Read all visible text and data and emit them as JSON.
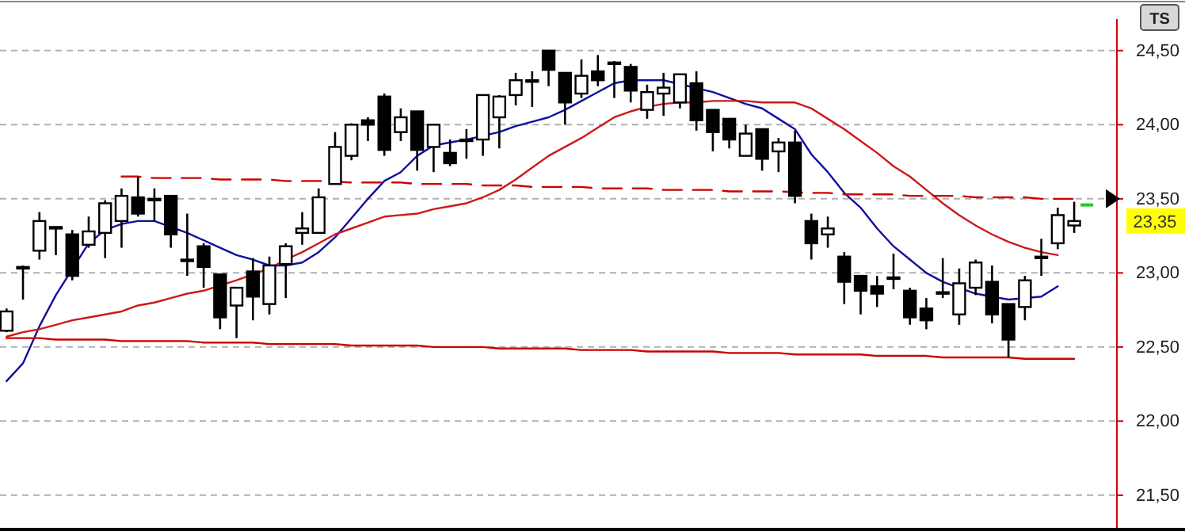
{
  "chart_data": {
    "type": "candlestick",
    "categories": [
      null,
      null,
      null,
      null,
      null,
      null,
      null,
      null,
      null,
      null,
      null,
      null,
      null,
      null,
      null,
      null,
      null,
      null,
      null,
      null,
      null,
      null,
      null,
      null,
      null,
      null,
      null,
      null,
      null,
      null,
      null,
      null,
      null,
      null,
      null,
      null,
      null,
      null,
      null,
      null,
      null,
      null,
      null,
      null,
      null,
      null,
      null,
      null,
      null,
      null,
      null,
      null,
      null,
      null,
      null,
      null,
      null,
      null,
      null,
      null,
      null,
      null,
      null,
      null,
      null,
      null
    ],
    "ohlc": [
      [
        22.61,
        22.76,
        22.6,
        22.74
      ],
      [
        23.03,
        23.05,
        22.82,
        23.04
      ],
      [
        23.15,
        23.41,
        23.09,
        23.35
      ],
      [
        23.3,
        23.31,
        23.12,
        23.31
      ],
      [
        23.26,
        23.29,
        22.95,
        22.98
      ],
      [
        23.19,
        23.38,
        23.17,
        23.28
      ],
      [
        23.27,
        23.49,
        23.1,
        23.47
      ],
      [
        23.35,
        23.57,
        23.17,
        23.52
      ],
      [
        23.51,
        23.65,
        23.38,
        23.4
      ],
      [
        23.5,
        23.57,
        23.35,
        23.5
      ],
      [
        23.52,
        23.52,
        23.17,
        23.26
      ],
      [
        23.09,
        23.4,
        22.98,
        23.09
      ],
      [
        23.18,
        23.2,
        22.9,
        23.04
      ],
      [
        22.99,
        22.99,
        22.62,
        22.7
      ],
      [
        22.78,
        22.9,
        22.56,
        22.9
      ],
      [
        23.01,
        23.1,
        22.68,
        22.84
      ],
      [
        22.79,
        23.11,
        22.72,
        23.05
      ],
      [
        23.06,
        23.2,
        22.83,
        23.18
      ],
      [
        23.27,
        23.41,
        23.19,
        23.3
      ],
      [
        23.27,
        23.57,
        23.27,
        23.51
      ],
      [
        23.6,
        23.95,
        23.6,
        23.85
      ],
      [
        23.79,
        24.01,
        23.76,
        24.0
      ],
      [
        24.03,
        24.05,
        23.89,
        24.0
      ],
      [
        24.19,
        24.21,
        23.79,
        23.83
      ],
      [
        23.95,
        24.11,
        23.89,
        24.05
      ],
      [
        24.09,
        24.09,
        23.69,
        23.83
      ],
      [
        23.85,
        24.0,
        23.68,
        24.0
      ],
      [
        23.81,
        23.9,
        23.72,
        23.74
      ],
      [
        23.89,
        23.97,
        23.77,
        23.9
      ],
      [
        23.9,
        24.2,
        23.79,
        24.2
      ],
      [
        24.05,
        24.2,
        23.84,
        24.19
      ],
      [
        24.2,
        24.35,
        24.13,
        24.3
      ],
      [
        24.29,
        24.36,
        24.12,
        24.3
      ],
      [
        24.5,
        24.5,
        24.26,
        24.37
      ],
      [
        24.35,
        24.35,
        24.0,
        24.15
      ],
      [
        24.21,
        24.44,
        24.18,
        24.33
      ],
      [
        24.36,
        24.47,
        24.26,
        24.3
      ],
      [
        24.41,
        24.43,
        24.18,
        24.42
      ],
      [
        24.39,
        24.41,
        24.15,
        24.23
      ],
      [
        24.1,
        24.27,
        24.04,
        24.22
      ],
      [
        24.21,
        24.35,
        24.06,
        24.25
      ],
      [
        24.15,
        24.34,
        24.11,
        24.34
      ],
      [
        24.28,
        24.36,
        23.96,
        24.03
      ],
      [
        24.1,
        24.1,
        23.82,
        23.95
      ],
      [
        24.04,
        24.04,
        23.84,
        23.9
      ],
      [
        23.79,
        24.0,
        23.79,
        23.94
      ],
      [
        23.97,
        23.97,
        23.69,
        23.77
      ],
      [
        23.82,
        23.91,
        23.68,
        23.88
      ],
      [
        23.88,
        23.96,
        23.47,
        23.52
      ],
      [
        23.35,
        23.4,
        23.09,
        23.2
      ],
      [
        23.26,
        23.38,
        23.17,
        23.3
      ],
      [
        23.11,
        23.14,
        22.79,
        22.94
      ],
      [
        22.98,
        22.98,
        22.72,
        22.88
      ],
      [
        22.91,
        22.98,
        22.77,
        22.86
      ],
      [
        22.97,
        23.13,
        22.89,
        22.97
      ],
      [
        22.88,
        22.9,
        22.65,
        22.7
      ],
      [
        22.76,
        22.83,
        22.62,
        22.68
      ],
      [
        22.87,
        23.1,
        22.83,
        22.87
      ],
      [
        22.72,
        23.03,
        22.65,
        22.93
      ],
      [
        22.9,
        23.09,
        22.85,
        23.07
      ],
      [
        22.94,
        23.05,
        22.66,
        22.72
      ],
      [
        22.79,
        22.79,
        22.43,
        22.55
      ],
      [
        22.77,
        22.98,
        22.68,
        22.95
      ],
      [
        23.11,
        23.23,
        22.98,
        23.11
      ],
      [
        23.2,
        23.44,
        23.16,
        23.39
      ],
      [
        23.32,
        23.48,
        23.27,
        23.35
      ]
    ],
    "ylim": [
      21.28,
      24.82
    ],
    "yticks": [
      {
        "value": 21.5,
        "label": "21,50"
      },
      {
        "value": 22,
        "label": "22,00"
      },
      {
        "value": 22.5,
        "label": "22,50"
      },
      {
        "value": 23,
        "label": "23,00"
      },
      {
        "value": 23.5,
        "label": "23,50"
      },
      {
        "value": 24,
        "label": "24,00"
      },
      {
        "value": 24.5,
        "label": "24,50"
      }
    ],
    "tick_labels": "y",
    "grid": "y",
    "series": [
      {
        "type": "line",
        "color": "#1010a0",
        "values": [
          22.27,
          22.39,
          22.64,
          22.85,
          null,
          23.2,
          23.29,
          23.33,
          23.35,
          23.35,
          null,
          23.27,
          23.22,
          23.17,
          23.12,
          23.09,
          23.05,
          23.05,
          23.07,
          23.14,
          23.24,
          23.37,
          23.5,
          23.62,
          23.68,
          23.79,
          23.86,
          23.88,
          23.9,
          null,
          23.95,
          23.99,
          24.02,
          24.05,
          24.1,
          24.16,
          24.22,
          24.28,
          24.3,
          24.3,
          24.3,
          null,
          null,
          24.22,
          24.18,
          24.14,
          24.11,
          24.04,
          23.97,
          23.8,
          23.68,
          23.54,
          23.44,
          23.3,
          23.18,
          23.09,
          23.0,
          22.94,
          null,
          22.86,
          22.84,
          22.82,
          null,
          22.84,
          22.91,
          null
        ]
      },
      {
        "type": "line",
        "color": "#cc1a1a",
        "values": [
          22.57,
          22.6,
          22.62,
          22.65,
          22.68,
          22.7,
          22.72,
          22.74,
          22.78,
          22.8,
          22.83,
          22.86,
          22.88,
          null,
          22.95,
          22.99,
          23.03,
          23.09,
          23.14,
          23.2,
          23.26,
          23.3,
          23.34,
          23.38,
          23.39,
          23.4,
          23.43,
          23.45,
          23.47,
          23.51,
          23.56,
          23.63,
          23.71,
          23.79,
          23.85,
          23.91,
          23.98,
          24.05,
          24.09,
          24.12,
          24.14,
          24.15,
          24.15,
          24.16,
          24.16,
          24.16,
          24.15,
          24.15,
          24.15,
          24.11,
          24.04,
          23.97,
          23.89,
          23.81,
          23.72,
          23.65,
          23.56,
          23.47,
          23.39,
          23.32,
          23.26,
          23.21,
          23.17,
          23.14,
          23.12,
          null
        ]
      },
      {
        "type": "line",
        "color": "#cc0000",
        "values": [
          22.56,
          22.56,
          22.56,
          22.55,
          22.55,
          22.55,
          22.55,
          22.54,
          22.54,
          22.54,
          22.54,
          22.54,
          22.53,
          22.53,
          22.53,
          22.53,
          22.52,
          22.52,
          22.52,
          22.52,
          22.52,
          22.51,
          22.51,
          22.51,
          22.51,
          22.51,
          22.5,
          22.5,
          22.5,
          22.5,
          22.49,
          22.49,
          22.49,
          22.49,
          22.49,
          22.48,
          22.48,
          22.48,
          22.48,
          22.47,
          22.47,
          22.47,
          22.47,
          22.47,
          22.46,
          22.46,
          22.46,
          22.46,
          22.45,
          22.45,
          22.45,
          22.45,
          22.45,
          22.44,
          22.44,
          22.44,
          22.44,
          22.43,
          22.43,
          22.43,
          22.43,
          22.43,
          22.42,
          22.42,
          22.42,
          22.42
        ]
      },
      {
        "type": "line",
        "color": "#cc0000",
        "line_style": "dashed",
        "values": [
          null,
          null,
          null,
          null,
          null,
          null,
          null,
          23.65,
          23.65,
          23.64,
          23.64,
          23.64,
          23.64,
          23.63,
          23.63,
          23.63,
          23.63,
          23.62,
          23.62,
          23.62,
          null,
          23.61,
          23.61,
          23.61,
          23.61,
          23.6,
          23.6,
          23.6,
          23.6,
          23.59,
          23.59,
          23.59,
          23.58,
          23.58,
          23.58,
          23.58,
          23.57,
          23.57,
          23.57,
          23.57,
          23.56,
          23.56,
          23.56,
          23.56,
          23.55,
          23.55,
          23.55,
          23.55,
          null,
          23.54,
          23.54,
          23.53,
          23.53,
          23.53,
          23.53,
          23.52,
          23.52,
          23.52,
          23.52,
          23.51,
          23.51,
          23.51,
          23.51,
          23.5,
          23.5,
          23.5
        ]
      }
    ],
    "annotations": [
      "23,35",
      "TS"
    ]
  }
}
